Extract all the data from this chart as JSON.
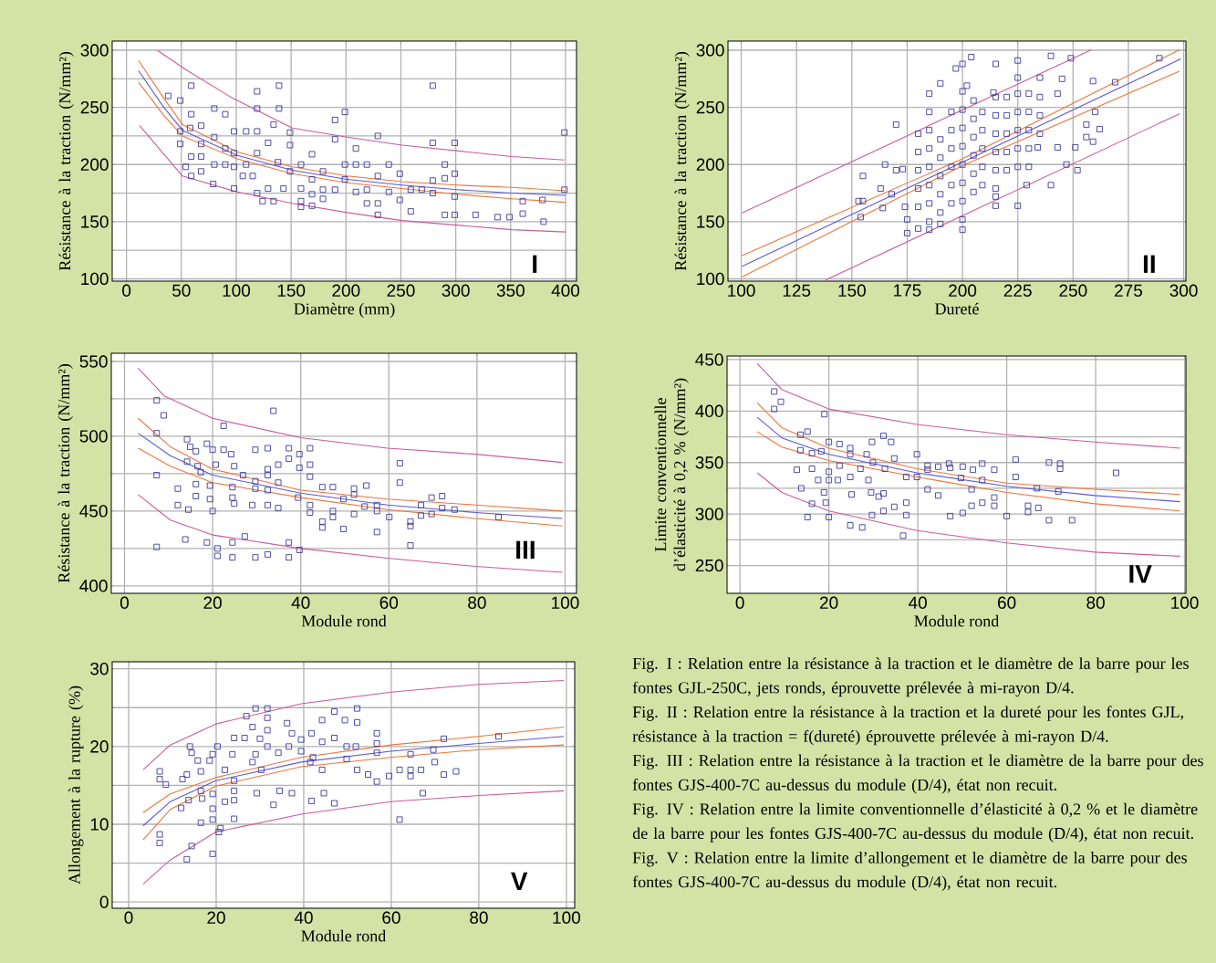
{
  "chart_data": [
    {
      "type": "scatter",
      "xlabel": "Diamètre (mm)",
      "ylabel": "Résistance à la traction (N/mm²)",
      "annotations": [
        "I"
      ],
      "xlim": [
        -13,
        410
      ],
      "ylim": [
        98,
        308
      ],
      "xticks": [
        0,
        50,
        100,
        150,
        200,
        250,
        300,
        350,
        400
      ],
      "yticks": [
        100,
        {
          "value": 125,
          "label": null
        },
        150,
        {
          "value": 175,
          "label": null
        },
        200,
        {
          "value": 225,
          "label": null
        },
        250,
        {
          "value": 275,
          "label": null
        },
        300
      ],
      "grid": true,
      "series": [
        {
          "type": "scatter",
          "marker": "square",
          "color": "#3b3b9c",
          "x": [
            38,
            49,
            59,
            119,
            139,
            119,
            139,
            134,
            149,
            149,
            190,
            199,
            190,
            209,
            229,
            279,
            279,
            299,
            399,
            290,
            299,
            290,
            279,
            279,
            269,
            259,
            249,
            249,
            259,
            290,
            299,
            299,
            318,
            338,
            349,
            361,
            361,
            379,
            380,
            399,
            239,
            239,
            229,
            229,
            229,
            219,
            219,
            219,
            209,
            209,
            199,
            199,
            190,
            179,
            179,
            179,
            169,
            169,
            169,
            169,
            159,
            159,
            159,
            159,
            143,
            134,
            124,
            119,
            129,
            149,
            138,
            129,
            119,
            109,
            119,
            109,
            98,
            98,
            98,
            98,
            90,
            80,
            79,
            68,
            68,
            68,
            59,
            54,
            49,
            49,
            58,
            59,
            68,
            80,
            90,
            106,
            115,
            80,
            90,
            59
          ],
          "values": [
            260,
            256,
            269,
            264,
            269,
            249,
            249,
            235,
            228,
            217,
            239,
            246,
            222,
            214,
            225,
            269,
            219,
            219,
            228,
            200,
            192,
            188,
            186,
            175,
            178,
            178,
            192,
            169,
            159,
            156,
            156,
            172,
            156,
            154,
            154,
            157,
            168,
            169,
            150,
            178,
            200,
            176,
            190,
            166,
            156,
            200,
            178,
            166,
            200,
            176,
            200,
            187,
            178,
            194,
            178,
            170,
            209,
            187,
            174,
            164,
            200,
            179,
            168,
            163,
            179,
            168,
            168,
            175,
            179,
            194,
            202,
            219,
            229,
            229,
            210,
            200,
            179,
            198,
            210,
            229,
            244,
            249,
            183,
            207,
            218,
            194,
            190,
            198,
            218,
            229,
            232,
            244,
            234,
            224,
            200,
            190,
            190,
            200,
            214,
            207
          ]
        },
        {
          "type": "line",
          "color": "#5a5ad6",
          "x": [
            11,
            34,
            51,
            101,
            151,
            201,
            251,
            301,
            351,
            400
          ],
          "values": [
            282,
            250,
            230,
            208,
            195,
            187,
            182,
            178,
            175,
            173
          ]
        },
        {
          "type": "line",
          "color": "#f0743a",
          "x": [
            11,
            34,
            51,
            101,
            151,
            201,
            251,
            301,
            351,
            400
          ],
          "values": [
            291,
            258,
            235,
            211,
            198,
            190,
            185,
            182,
            180,
            177
          ]
        },
        {
          "type": "line",
          "color": "#f0743a",
          "x": [
            11,
            34,
            51,
            101,
            151,
            201,
            251,
            301,
            351,
            400
          ],
          "values": [
            272,
            243,
            225,
            205,
            192,
            184,
            179,
            174,
            170,
            167
          ]
        },
        {
          "type": "line",
          "color": "#cc5a9a",
          "x": [
            28,
            54,
            95,
            151,
            201,
            251,
            301,
            351,
            399
          ],
          "values": [
            300,
            283,
            259,
            232,
            224,
            217,
            212,
            207,
            204
          ]
        },
        {
          "type": "line",
          "color": "#cc5a9a",
          "x": [
            12,
            51,
            101,
            151,
            201,
            251,
            301,
            351,
            400
          ],
          "values": [
            234,
            190,
            176,
            166,
            158,
            151,
            147,
            143,
            141
          ]
        }
      ]
    },
    {
      "type": "scatter",
      "xlabel": "Dureté",
      "ylabel": "Résistance à la traction (N/mm²)",
      "annotations": [
        "II"
      ],
      "xlim": [
        94,
        301
      ],
      "ylim": [
        98,
        308
      ],
      "xticks": [
        100,
        125,
        150,
        175,
        200,
        225,
        250,
        275,
        300
      ],
      "yticks": [
        100,
        150,
        200,
        250,
        300
      ],
      "grid": true,
      "series": [
        {
          "type": "scatter",
          "marker": "square",
          "color": "#3b3b9c",
          "x": [
            204,
            200,
            197,
            215,
            225,
            240,
            249,
            289,
            269,
            259,
            235,
            225,
            245,
            190,
            202,
            214,
            243,
            260,
            256,
            262,
            256,
            259,
            251,
            243,
            234,
            247,
            252,
            240,
            229,
            225,
            215,
            215,
            200,
            185,
            175,
            190,
            154,
            153,
            155,
            155,
            164,
            165,
            170,
            170,
            163,
            168,
            173,
            174,
            175,
            180,
            180,
            180,
            180,
            180,
            180,
            185,
            185,
            185,
            185,
            185,
            185,
            185,
            185,
            190,
            190,
            190,
            190,
            190,
            195,
            195,
            195,
            195,
            195,
            195,
            200,
            200,
            200,
            200,
            200,
            200,
            200,
            200,
            205,
            205,
            205,
            205,
            205,
            205,
            209,
            209,
            209,
            209,
            209,
            215,
            215,
            215,
            215,
            215,
            215,
            220,
            220,
            220,
            220,
            220,
            225,
            225,
            225,
            225,
            225,
            230,
            230,
            230,
            230,
            230,
            235,
            235,
            235
          ],
          "values": [
            294,
            288,
            284,
            288,
            291,
            295,
            293,
            293,
            272,
            273,
            276,
            276,
            275,
            271,
            269,
            263,
            262,
            246,
            235,
            231,
            224,
            220,
            215,
            215,
            215,
            200,
            195,
            182,
            182,
            164,
            164,
            172,
            143,
            143,
            140,
            148,
            154,
            168,
            168,
            190,
            162,
            200,
            195,
            235,
            179,
            174,
            196,
            163,
            152,
            227,
            211,
            195,
            179,
            163,
            144,
            262,
            246,
            230,
            214,
            198,
            182,
            166,
            150,
            222,
            206,
            190,
            174,
            158,
            246,
            230,
            214,
            198,
            182,
            166,
            264,
            248,
            232,
            216,
            200,
            184,
            168,
            152,
            256,
            240,
            224,
            208,
            192,
            176,
            246,
            230,
            214,
            198,
            182,
            259,
            243,
            227,
            211,
            195,
            179,
            259,
            243,
            227,
            211,
            195,
            262,
            246,
            230,
            214,
            198,
            262,
            246,
            230,
            214,
            198,
            259,
            243,
            227
          ]
        },
        {
          "type": "line",
          "color": "#5a5ad6",
          "x": [
            100.4,
            298.7
          ],
          "values": [
            111,
            292.4
          ]
        },
        {
          "type": "line",
          "color": "#f0743a",
          "x": [
            100.4,
            200,
            298.1
          ],
          "values": [
            120.4,
            205,
            300.4
          ]
        },
        {
          "type": "line",
          "color": "#f0743a",
          "x": [
            100.4,
            200,
            298.1
          ],
          "values": [
            101.7,
            199,
            281.7
          ]
        },
        {
          "type": "line",
          "color": "#cc5a9a",
          "x": [
            100.4,
            258.3
          ],
          "values": [
            157.7,
            300.4
          ]
        },
        {
          "type": "line",
          "color": "#cc5a9a",
          "x": [
            138.2,
            298.1
          ],
          "values": [
            99,
            244.4
          ]
        }
      ]
    },
    {
      "type": "scatter",
      "xlabel": "Module rond",
      "ylabel": "Résistance à la traction (N/mm²)",
      "annotations": [
        "III"
      ],
      "xlim": [
        -3,
        102.6
      ],
      "ylim": [
        395,
        555.5
      ],
      "xticks": [
        0,
        20,
        40,
        60,
        80,
        100
      ],
      "yticks": [
        400,
        {
          "value": 425,
          "label": null
        },
        450,
        {
          "value": 475,
          "label": null
        },
        500,
        {
          "value": 525,
          "label": null
        },
        550
      ],
      "grid": true,
      "series": [
        {
          "type": "scatter",
          "marker": "square",
          "color": "#3b3b9c",
          "x": [
            7.3,
            8.9,
            7.3,
            7.3,
            7.3,
            33.8,
            22.5,
            14.2,
            14.9,
            18.7,
            20,
            22.5,
            16.2,
            24.2,
            29.7,
            32.5,
            37.3,
            42.1,
            39.7,
            37.3,
            34.9,
            32.5,
            39.7,
            42.1,
            42.1,
            14.2,
            16.6,
            20.7,
            24.9,
            26.9,
            29.7,
            32.5,
            34.9,
            24.5,
            29.7,
            32.5,
            17.3,
            16.2,
            16.2,
            19.4,
            12.1,
            19.4,
            24.5,
            24.9,
            29,
            32.5,
            34.9,
            20,
            12.1,
            14.5,
            39.4,
            42.1,
            44.9,
            47.3,
            42.1,
            44.9,
            44.9,
            47.3,
            47.3,
            49.7,
            49.7,
            52.1,
            52.1,
            52.1,
            54.9,
            54.5,
            57.3,
            57.3,
            57.3,
            60.1,
            62.5,
            62.5,
            64.9,
            64.9,
            64.9,
            67.3,
            67.3,
            69.7,
            69.7,
            72.1,
            72.1,
            74.9,
            84.9,
            13.8,
            18.7,
            21.1,
            21.1,
            24.5,
            24.5,
            27.3,
            29.7,
            32.5,
            37.3,
            37.3,
            39.7
          ],
          "values": [
            524,
            514,
            502,
            474,
            426,
            517,
            507,
            498,
            493,
            495,
            491,
            491,
            490,
            488,
            491,
            492,
            492,
            492,
            488,
            485,
            481,
            478,
            479,
            481,
            473,
            483,
            480,
            481,
            480,
            474,
            470,
            474,
            469,
            466,
            465,
            464,
            476,
            468,
            460,
            467,
            465,
            458,
            459,
            455,
            454,
            454,
            452,
            450,
            454,
            451,
            459,
            454,
            466,
            466,
            449,
            443,
            439,
            450,
            446,
            458,
            438,
            465,
            461,
            448,
            467,
            453,
            454,
            450,
            436,
            446,
            482,
            469,
            443,
            440,
            427,
            454,
            447,
            459,
            448,
            460,
            452,
            451,
            446,
            431,
            429,
            425,
            420,
            419,
            429,
            433,
            419,
            421,
            429,
            419,
            424
          ]
        },
        {
          "type": "line",
          "color": "#5a5ad6",
          "x": [
            3.1,
            10.4,
            20,
            40,
            59.7,
            79.7,
            99.4
          ],
          "values": [
            502,
            487,
            474,
            462,
            454,
            449,
            445
          ]
        },
        {
          "type": "line",
          "color": "#f0743a",
          "x": [
            3.1,
            10.4,
            20,
            40,
            59.7,
            79.7,
            99.4
          ],
          "values": [
            512,
            493,
            478,
            464,
            458,
            454,
            450
          ]
        },
        {
          "type": "line",
          "color": "#f0743a",
          "x": [
            3.1,
            10.4,
            20,
            40,
            59.7,
            79.7,
            99.4
          ],
          "values": [
            492,
            480,
            469,
            459,
            451,
            445,
            440
          ]
        },
        {
          "type": "line",
          "color": "#cc5a9a",
          "x": [
            3.1,
            9,
            20,
            40,
            59.7,
            79.7,
            99.4
          ],
          "values": [
            545.5,
            527,
            512,
            499,
            492,
            488,
            482.5
          ]
        },
        {
          "type": "line",
          "color": "#cc5a9a",
          "x": [
            3.1,
            10.4,
            20,
            40,
            59.7,
            79.7,
            99.4
          ],
          "values": [
            461,
            444,
            434,
            425,
            418.5,
            413,
            409
          ]
        }
      ]
    },
    {
      "type": "scatter",
      "xlabel": "Module rond",
      "ylabel": "Limite conventionnelle d’élasticité à 0,2 % (N/mm²)",
      "annotations": [
        "IV"
      ],
      "xlim": [
        -2.9,
        100.3
      ],
      "ylim": [
        223,
        453.5
      ],
      "xticks": [
        0,
        20,
        40,
        60,
        80,
        100
      ],
      "yticks": [
        250,
        {
          "value": 275,
          "label": null
        },
        300,
        {
          "value": 325,
          "label": null
        },
        350,
        {
          "value": 375,
          "label": null
        },
        400,
        {
          "value": 425,
          "label": null
        },
        450
      ],
      "grid": true,
      "series": [
        {
          "type": "scatter",
          "marker": "square",
          "color": "#3b3b9c",
          "x": [
            7.7,
            9.2,
            7.7,
            19,
            13.6,
            15.2,
            32.3,
            29.7,
            34,
            20,
            22.4,
            24.8,
            13.6,
            16.2,
            18.3,
            24.8,
            28.5,
            34.7,
            39.8,
            12.8,
            16.2,
            20,
            22.4,
            27.1,
            29.9,
            32.6,
            37.4,
            39.8,
            42.2,
            42.2,
            44.6,
            47,
            47.3,
            50.1,
            52.4,
            54.5,
            57.2,
            62,
            62,
            69.5,
            72,
            72,
            84.6,
            17.6,
            20,
            22,
            24.8,
            28.9,
            13.8,
            18.9,
            29.5,
            31.2,
            32.3,
            25.1,
            42.2,
            44.6,
            49.7,
            52.1,
            54.5,
            66.8,
            71.6,
            16.2,
            19.3,
            20,
            15.2,
            24.8,
            27.5,
            29.7,
            32.3,
            34.7,
            37.4,
            37.4,
            36.7,
            47.3,
            50.1,
            52.1,
            54.5,
            57.2,
            57.2,
            60,
            64.8,
            64.8,
            67.1,
            69.5,
            74.7
          ],
          "values": [
            419,
            409,
            402,
            397,
            377,
            380,
            376,
            370,
            370,
            370,
            368,
            364,
            362,
            359,
            361,
            358,
            358,
            354,
            358,
            343,
            344,
            341,
            347,
            344,
            350,
            344,
            336,
            336,
            347,
            343,
            346,
            349,
            345,
            346,
            343,
            349,
            343,
            353,
            336,
            350,
            349,
            344,
            340,
            333,
            333,
            333,
            336,
            333,
            325,
            321,
            321,
            317,
            320,
            319,
            324,
            318,
            335,
            324,
            333,
            325,
            322,
            310,
            311,
            297,
            297,
            289,
            287,
            299,
            303,
            307,
            311,
            299,
            279,
            298,
            301,
            308,
            311,
            308,
            316,
            298,
            308,
            302,
            306,
            294,
            294
          ]
        },
        {
          "type": "line",
          "color": "#5a5ad6",
          "x": [
            3.9,
            9.4,
            20,
            39.8,
            60,
            79.8,
            99
          ],
          "values": [
            394,
            374,
            358,
            340,
            327,
            318,
            312
          ]
        },
        {
          "type": "line",
          "color": "#f0743a",
          "x": [
            3.9,
            9.4,
            20,
            39.8,
            60,
            79.8,
            99
          ],
          "values": [
            408,
            384,
            364,
            344,
            330,
            324,
            319
          ]
        },
        {
          "type": "line",
          "color": "#f0743a",
          "x": [
            3.9,
            9.4,
            20,
            39.8,
            60,
            79.8,
            99
          ],
          "values": [
            380,
            365,
            352,
            336,
            321,
            310,
            303
          ]
        },
        {
          "type": "line",
          "color": "#cc5a9a",
          "x": [
            3.9,
            9.4,
            20,
            39.8,
            60,
            79.8,
            99
          ],
          "values": [
            446,
            421,
            402,
            387,
            377,
            370,
            364
          ]
        },
        {
          "type": "line",
          "color": "#cc5a9a",
          "x": [
            3.9,
            9.4,
            20,
            39.8,
            60,
            79.8,
            99
          ],
          "values": [
            340,
            321,
            303,
            284,
            272,
            263,
            259
          ]
        }
      ]
    },
    {
      "type": "scatter",
      "xlabel": "Module rond",
      "ylabel": "Allongement à la rupture (%)",
      "annotations": [
        "V"
      ],
      "xlim": [
        -3.75,
        101.9
      ],
      "ylim": [
        -0.8,
        30.9
      ],
      "xticks": [
        0,
        20,
        40,
        60,
        80,
        100
      ],
      "yticks": [
        0,
        {
          "value": 5,
          "label": null
        },
        10,
        {
          "value": 15,
          "label": null
        },
        20,
        {
          "value": 25,
          "label": null
        },
        30
      ],
      "grid": true,
      "series": [
        {
          "type": "scatter",
          "marker": "square",
          "color": "#3b3b9c",
          "x": [
            7.1,
            7.1,
            8.5,
            7.1,
            7.1,
            14.4,
            13.3,
            19.2,
            12,
            12.3,
            14,
            14.4,
            15.8,
            16.5,
            13.3,
            13.7,
            16.5,
            16.8,
            19.2,
            18.5,
            20.3,
            19.2,
            19.2,
            16.5,
            19.2,
            21,
            20.6,
            24.1,
            22,
            24.1,
            24.1,
            24.1,
            22,
            23.7,
            24.1,
            26.5,
            26.9,
            29,
            31.7,
            31.7,
            28.3,
            31.7,
            30,
            31.7,
            29,
            34.2,
            28.3,
            30.3,
            36.2,
            36.6,
            37.3,
            39.4,
            41.8,
            39.4,
            41.5,
            44.2,
            42.1,
            44.2,
            47,
            44.2,
            47,
            49.4,
            52.2,
            52.2,
            49.8,
            49.8,
            51.9,
            52.2,
            54.7,
            56.7,
            56.7,
            56.7,
            56.7,
            59.5,
            61.9,
            61.9,
            64.4,
            64.4,
            64.4,
            66.8,
            67.2,
            69.6,
            69.9,
            72,
            72,
            74.8,
            84.5,
            33.1,
            34.5,
            37.3,
            41.8,
            44.6,
            47,
            29.3
          ],
          "values": [
            16.8,
            15.8,
            15.1,
            8.7,
            7.6,
            7.2,
            5.5,
            6.2,
            12.1,
            15.8,
            20,
            19.2,
            18.2,
            16.8,
            16.4,
            13.1,
            14.3,
            13.3,
            19,
            18.2,
            20,
            13.9,
            12,
            10.2,
            10.6,
            9.5,
            9,
            10.7,
            12.9,
            15.6,
            14.3,
            13.1,
            17,
            19,
            21.1,
            21.1,
            23.9,
            24.9,
            24.9,
            23.7,
            22.5,
            22.1,
            21,
            20,
            19,
            19.2,
            18,
            17,
            23,
            20,
            21.7,
            20.9,
            21.7,
            19.4,
            18,
            17,
            18.6,
            20.6,
            21.1,
            23.4,
            24.5,
            23.4,
            24.9,
            23.1,
            20,
            18.4,
            20,
            17,
            16.4,
            21.7,
            20.4,
            19.2,
            15.5,
            16.2,
            17,
            10.6,
            19,
            17,
            16.2,
            17,
            14,
            19.6,
            18,
            21,
            16.4,
            16.8,
            21.3,
            12.5,
            14.3,
            14,
            13,
            14,
            12.7,
            14
          ]
        },
        {
          "type": "line",
          "color": "#5a5ad6",
          "x": [
            3.3,
            9.5,
            19.9,
            39.4,
            59.9,
            80,
            99.4
          ],
          "values": [
            9.8,
            12.9,
            15.6,
            18,
            19.4,
            20.4,
            21.3
          ]
        },
        {
          "type": "line",
          "color": "#f0743a",
          "x": [
            3.3,
            9.5,
            19.9,
            39.4,
            59.9,
            80,
            99.4
          ],
          "values": [
            11.5,
            13.9,
            16,
            18.6,
            20.2,
            21.3,
            22.5
          ]
        },
        {
          "type": "line",
          "color": "#f0743a",
          "x": [
            3.3,
            9.5,
            19.9,
            39.4,
            59.9,
            80,
            99.4
          ],
          "values": [
            8,
            11.9,
            14.9,
            17.4,
            18.6,
            19.6,
            20.2
          ]
        },
        {
          "type": "line",
          "color": "#cc5a9a",
          "x": [
            3.3,
            9.5,
            19.9,
            39.4,
            59.9,
            80,
            99.4
          ],
          "values": [
            17,
            20.2,
            22.9,
            25.5,
            27,
            28,
            28.5
          ]
        },
        {
          "type": "line",
          "color": "#cc5a9a",
          "x": [
            3.3,
            9.5,
            19.9,
            39.4,
            59.9,
            80,
            99.4
          ],
          "values": [
            2.3,
            5.4,
            9,
            11.3,
            12.9,
            13.7,
            14.3
          ]
        }
      ]
    },
    {
      "type": "other",
      "annotations": [
        "Fig. I : Relation entre la résistance à la traction et le diamètre de la barre pour les fontes GJL-250C, jets ronds, éprouvette prélevée à mi-rayon D/4.",
        "Fig. II : Relation entre la résistance à la traction et la dureté pour les fontes GJL, résistance à la traction = f(dureté) éprouvette prélevée à mi-rayon D/4.",
        "Fig. III : Relation entre la résistance à la traction et le diamètre de la barre pour des fontes GJS-400-7C au-dessus du module (D/4), état non recuit.",
        "Fig. IV : Relation entre la limite conventionnelle d’élasticité à 0,2 % et le diamètre de la barre pour les fontes GJS-400-7C au-dessus du module (D/4), état non recuit.",
        "Fig. V : Relation entre la limite d’allongement et le diamètre de la barre pour des fontes GJS-400-7C au-dessus du module (D/4), état non recuit."
      ]
    }
  ]
}
